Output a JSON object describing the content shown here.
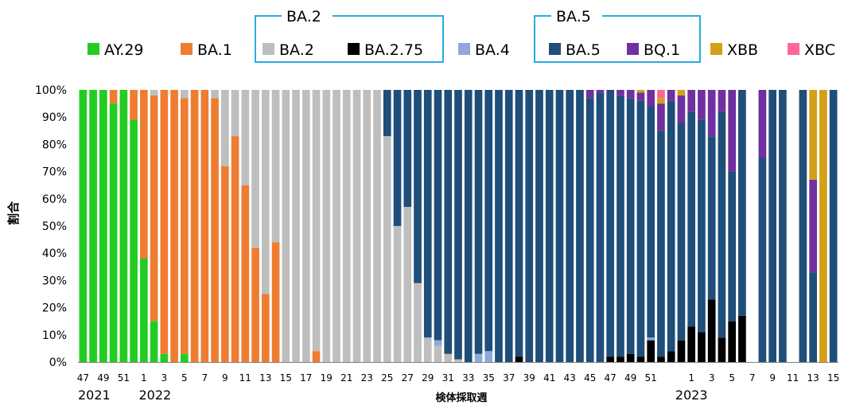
{
  "chart_data": {
    "type": "bar",
    "stacked": true,
    "normalized": true,
    "title": "",
    "xlabel": "検体採取週",
    "ylabel": "割合",
    "ylim": [
      0,
      100
    ],
    "yticks": [
      "0%",
      "10%",
      "20%",
      "30%",
      "40%",
      "50%",
      "60%",
      "70%",
      "80%",
      "90%",
      "100%"
    ],
    "legend_position": "top",
    "legend_groups": [
      {
        "label": "BA.2",
        "members": [
          "BA.2",
          "BA.2.75"
        ]
      },
      {
        "label": "BA.5",
        "members": [
          "BA.5",
          "BQ.1"
        ]
      }
    ],
    "series": [
      {
        "name": "AY.29",
        "color": "#22cc22"
      },
      {
        "name": "BA.1",
        "color": "#ee7d31"
      },
      {
        "name": "BA.2",
        "color": "#bebebe"
      },
      {
        "name": "BA.2.75",
        "color": "#000000"
      },
      {
        "name": "BA.4",
        "color": "#8eaadb"
      },
      {
        "name": "BA.5",
        "color": "#1f4e79"
      },
      {
        "name": "BQ.1",
        "color": "#7030a0"
      },
      {
        "name": "XBB",
        "color": "#d4a017"
      },
      {
        "name": "XBC",
        "color": "#ff6699"
      }
    ],
    "year_labels": [
      {
        "label": "2021",
        "at_week": "47"
      },
      {
        "label": "2022",
        "at_week": "1"
      },
      {
        "label": "2023",
        "at_week": "1"
      }
    ],
    "weeks": [
      {
        "label": "47",
        "v": {
          "AY.29": 100
        }
      },
      {
        "label": "",
        "v": {
          "AY.29": 100
        }
      },
      {
        "label": "49",
        "v": {
          "AY.29": 100
        }
      },
      {
        "label": "",
        "v": {
          "AY.29": 95,
          "BA.1": 5
        }
      },
      {
        "label": "51",
        "v": {
          "AY.29": 100
        }
      },
      {
        "label": "",
        "v": {
          "AY.29": 89,
          "BA.1": 11
        }
      },
      {
        "label": "1",
        "v": {
          "AY.29": 38,
          "BA.1": 62
        }
      },
      {
        "label": "",
        "v": {
          "AY.29": 15,
          "BA.1": 83,
          "BA.2": 2
        }
      },
      {
        "label": "3",
        "v": {
          "AY.29": 3,
          "BA.1": 97
        }
      },
      {
        "label": "",
        "v": {
          "BA.1": 100
        }
      },
      {
        "label": "5",
        "v": {
          "AY.29": 3,
          "BA.1": 94,
          "BA.2": 3
        }
      },
      {
        "label": "",
        "v": {
          "BA.1": 100
        }
      },
      {
        "label": "7",
        "v": {
          "BA.1": 100
        }
      },
      {
        "label": "",
        "v": {
          "BA.1": 97,
          "BA.2": 3
        }
      },
      {
        "label": "9",
        "v": {
          "BA.1": 72,
          "BA.2": 28
        }
      },
      {
        "label": "",
        "v": {
          "BA.1": 83,
          "BA.2": 17
        }
      },
      {
        "label": "11",
        "v": {
          "BA.1": 65,
          "BA.2": 35
        }
      },
      {
        "label": "",
        "v": {
          "BA.1": 42,
          "BA.2": 58
        }
      },
      {
        "label": "13",
        "v": {
          "BA.1": 25,
          "BA.2": 75
        }
      },
      {
        "label": "",
        "v": {
          "BA.1": 44,
          "BA.2": 56
        }
      },
      {
        "label": "15",
        "v": {
          "BA.2": 100
        }
      },
      {
        "label": "",
        "v": {
          "BA.2": 100
        }
      },
      {
        "label": "17",
        "v": {
          "BA.2": 100
        }
      },
      {
        "label": "",
        "v": {
          "BA.1": 4,
          "BA.2": 96
        }
      },
      {
        "label": "19",
        "v": {
          "BA.2": 100
        }
      },
      {
        "label": "",
        "v": {
          "BA.2": 100
        }
      },
      {
        "label": "21",
        "v": {
          "BA.2": 100
        }
      },
      {
        "label": "",
        "v": {
          "BA.2": 100
        }
      },
      {
        "label": "23",
        "v": {
          "BA.2": 100
        }
      },
      {
        "label": "",
        "v": {
          "BA.2": 100
        }
      },
      {
        "label": "25",
        "v": {
          "BA.2": 83,
          "BA.5": 17
        }
      },
      {
        "label": "",
        "v": {
          "BA.2": 50,
          "BA.5": 50
        }
      },
      {
        "label": "27",
        "v": {
          "BA.2": 57,
          "BA.5": 43
        }
      },
      {
        "label": "",
        "v": {
          "BA.2": 29,
          "BA.5": 71
        }
      },
      {
        "label": "29",
        "v": {
          "BA.2": 9,
          "BA.5": 91
        }
      },
      {
        "label": "",
        "v": {
          "BA.2": 6,
          "BA.5": 92,
          "BA.4": 2
        }
      },
      {
        "label": "31",
        "v": {
          "BA.2": 3,
          "BA.5": 97
        }
      },
      {
        "label": "",
        "v": {
          "BA.2": 1,
          "BA.5": 99
        }
      },
      {
        "label": "33",
        "v": {
          "BA.5": 100
        }
      },
      {
        "label": "",
        "v": {
          "BA.5": 97,
          "BA.4": 3
        }
      },
      {
        "label": "35",
        "v": {
          "BA.5": 96,
          "BA.4": 4
        }
      },
      {
        "label": "",
        "v": {
          "BA.5": 100
        }
      },
      {
        "label": "37",
        "v": {
          "BA.5": 100
        }
      },
      {
        "label": "",
        "v": {
          "BA.5": 98,
          "BA.2.75": 2
        }
      },
      {
        "label": "39",
        "v": {
          "BA.5": 100
        }
      },
      {
        "label": "",
        "v": {
          "BA.5": 100
        }
      },
      {
        "label": "41",
        "v": {
          "BA.5": 100
        }
      },
      {
        "label": "",
        "v": {
          "BA.5": 100
        }
      },
      {
        "label": "43",
        "v": {
          "BA.5": 100
        }
      },
      {
        "label": "",
        "v": {
          "BA.5": 100
        }
      },
      {
        "label": "45",
        "v": {
          "BA.5": 97,
          "BQ.1": 3
        }
      },
      {
        "label": "",
        "v": {
          "BA.5": 99,
          "BQ.1": 1
        }
      },
      {
        "label": "47",
        "v": {
          "BA.5": 98,
          "BA.2.75": 2
        }
      },
      {
        "label": "",
        "v": {
          "BA.5": 96,
          "BA.2.75": 2,
          "BQ.1": 2
        }
      },
      {
        "label": "49",
        "v": {
          "BA.5": 94,
          "BA.2.75": 3,
          "BQ.1": 3
        }
      },
      {
        "label": "",
        "v": {
          "BA.5": 94,
          "BA.2.75": 2,
          "BQ.1": 3,
          "XBB": 1
        }
      },
      {
        "label": "51",
        "v": {
          "BA.5": 85,
          "BA.4": 1,
          "BA.2.75": 8,
          "BQ.1": 6
        }
      },
      {
        "label": "",
        "v": {
          "BA.5": 83,
          "BA.2.75": 2,
          "BQ.1": 10,
          "XBB": 2,
          "XBC": 3
        }
      },
      {
        "label": "",
        "v": {
          "BA.5": 92,
          "BA.2.75": 4,
          "BQ.1": 4
        }
      },
      {
        "label": "",
        "v": {
          "BA.5": 80,
          "BA.2.75": 8,
          "BQ.1": 10,
          "XBB": 2
        }
      },
      {
        "label": "1",
        "v": {
          "BA.5": 79,
          "BA.2.75": 13,
          "BQ.1": 8
        }
      },
      {
        "label": "",
        "v": {
          "BA.5": 78,
          "BA.2.75": 11,
          "BQ.1": 11
        }
      },
      {
        "label": "3",
        "v": {
          "BA.5": 60,
          "BA.2.75": 23,
          "BQ.1": 17
        }
      },
      {
        "label": "",
        "v": {
          "BA.5": 83,
          "BA.2.75": 9,
          "BQ.1": 8
        }
      },
      {
        "label": "5",
        "v": {
          "BA.5": 55,
          "BA.2.75": 15,
          "BQ.1": 30
        }
      },
      {
        "label": "",
        "v": {
          "BA.5": 83,
          "BA.2.75": 17
        }
      },
      {
        "label": "7",
        "v": {}
      },
      {
        "label": "",
        "v": {
          "BA.5": 75,
          "BQ.1": 25
        }
      },
      {
        "label": "9",
        "v": {
          "BA.5": 100
        }
      },
      {
        "label": "",
        "v": {
          "BA.5": 100
        }
      },
      {
        "label": "11",
        "v": {}
      },
      {
        "label": "",
        "v": {
          "BA.5": 100
        }
      },
      {
        "label": "13",
        "v": {
          "BA.5": 33,
          "BQ.1": 34,
          "XBB": 33
        }
      },
      {
        "label": "",
        "v": {
          "XBB": 100
        }
      },
      {
        "label": "15",
        "v": {
          "BA.5": 100
        }
      }
    ]
  }
}
